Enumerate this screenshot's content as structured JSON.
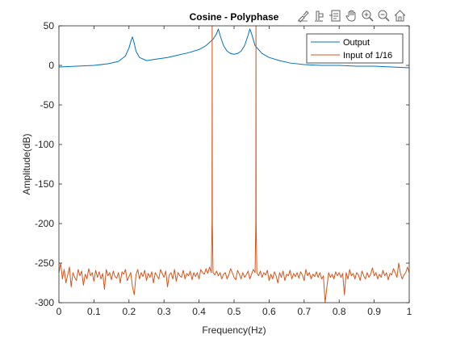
{
  "toolbar": {
    "icons": [
      "brush-icon",
      "data-cursor-icon",
      "export-icon",
      "pan-hand-icon",
      "zoom-in-icon",
      "zoom-out-icon",
      "home-icon"
    ]
  },
  "colors": {
    "output": "#0072BD",
    "input": "#D95319",
    "axis": "#262626",
    "background": "#ffffff"
  },
  "chart_data": {
    "type": "line",
    "title": "Cosine - Polyphase",
    "xlabel": "Frequency(Hz)",
    "ylabel": "Amplitude(dB)",
    "xlim": [
      0,
      1
    ],
    "ylim": [
      -300,
      50
    ],
    "xticks": [
      0,
      0.1,
      0.2,
      0.3,
      0.4,
      0.5,
      0.6,
      0.7,
      0.8,
      0.9,
      1
    ],
    "xtick_labels": [
      "0",
      "0.1",
      "0.2",
      "0.3",
      "0.4",
      "0.5",
      "0.6",
      "0.7",
      "0.8",
      "0.9",
      "1"
    ],
    "yticks": [
      50,
      0,
      -50,
      -100,
      -150,
      -200,
      -250,
      -300
    ],
    "ytick_labels": [
      "50",
      "0",
      "-50",
      "-100",
      "-150",
      "-200",
      "-250",
      "-300"
    ],
    "grid": false,
    "legend": "top-right",
    "series": [
      {
        "name": "Output",
        "color": "#0072BD",
        "x": [
          0,
          0.05,
          0.1,
          0.14,
          0.17,
          0.19,
          0.2,
          0.205,
          0.21,
          0.215,
          0.22,
          0.23,
          0.25,
          0.28,
          0.31,
          0.34,
          0.37,
          0.4,
          0.42,
          0.44,
          0.45,
          0.455,
          0.46,
          0.47,
          0.48,
          0.49,
          0.5,
          0.51,
          0.52,
          0.53,
          0.54,
          0.545,
          0.55,
          0.56,
          0.58,
          0.6,
          0.63,
          0.66,
          0.7,
          0.75,
          0.8,
          0.85,
          0.9,
          0.95,
          1
        ],
        "y": [
          -2,
          -1,
          0,
          2,
          5,
          12,
          22,
          30,
          36,
          28,
          18,
          10,
          6,
          8,
          10,
          13,
          16,
          20,
          25,
          33,
          40,
          46,
          38,
          25,
          18,
          15,
          14,
          15,
          18,
          25,
          38,
          46,
          40,
          25,
          15,
          10,
          6,
          3,
          1,
          0,
          0,
          -1,
          -1,
          -2,
          -3
        ]
      },
      {
        "name": "Input of 1/16",
        "color": "#D95319",
        "x": [
          0,
          0.005,
          0.01,
          0.015,
          0.02,
          0.025,
          0.03,
          0.035,
          0.04,
          0.045,
          0.05,
          0.055,
          0.06,
          0.065,
          0.07,
          0.075,
          0.08,
          0.085,
          0.09,
          0.095,
          0.1,
          0.105,
          0.11,
          0.115,
          0.12,
          0.125,
          0.13,
          0.135,
          0.14,
          0.145,
          0.15,
          0.155,
          0.16,
          0.165,
          0.17,
          0.175,
          0.18,
          0.185,
          0.19,
          0.195,
          0.2,
          0.205,
          0.21,
          0.215,
          0.22,
          0.225,
          0.23,
          0.235,
          0.24,
          0.245,
          0.25,
          0.255,
          0.26,
          0.265,
          0.27,
          0.275,
          0.28,
          0.285,
          0.29,
          0.295,
          0.3,
          0.305,
          0.31,
          0.315,
          0.32,
          0.325,
          0.33,
          0.335,
          0.34,
          0.345,
          0.35,
          0.355,
          0.36,
          0.365,
          0.37,
          0.375,
          0.38,
          0.385,
          0.39,
          0.395,
          0.4,
          0.405,
          0.41,
          0.415,
          0.42,
          0.425,
          0.43,
          0.435,
          0.437,
          0.4375,
          0.438,
          0.44,
          0.445,
          0.45,
          0.455,
          0.46,
          0.465,
          0.47,
          0.475,
          0.48,
          0.485,
          0.49,
          0.495,
          0.5,
          0.505,
          0.51,
          0.515,
          0.52,
          0.525,
          0.53,
          0.535,
          0.54,
          0.545,
          0.55,
          0.555,
          0.56,
          0.562,
          0.5625,
          0.563,
          0.565,
          0.57,
          0.575,
          0.58,
          0.585,
          0.59,
          0.595,
          0.6,
          0.605,
          0.61,
          0.615,
          0.62,
          0.625,
          0.63,
          0.635,
          0.64,
          0.645,
          0.65,
          0.655,
          0.66,
          0.665,
          0.67,
          0.675,
          0.68,
          0.685,
          0.69,
          0.695,
          0.7,
          0.705,
          0.71,
          0.715,
          0.72,
          0.725,
          0.73,
          0.735,
          0.74,
          0.745,
          0.75,
          0.755,
          0.76,
          0.765,
          0.77,
          0.775,
          0.78,
          0.785,
          0.79,
          0.795,
          0.8,
          0.805,
          0.81,
          0.815,
          0.82,
          0.825,
          0.83,
          0.835,
          0.84,
          0.845,
          0.85,
          0.855,
          0.86,
          0.865,
          0.87,
          0.875,
          0.88,
          0.885,
          0.89,
          0.895,
          0.9,
          0.905,
          0.91,
          0.915,
          0.92,
          0.925,
          0.93,
          0.935,
          0.94,
          0.945,
          0.95,
          0.955,
          0.96,
          0.965,
          0.97,
          0.975,
          0.98,
          0.985,
          0.99,
          0.995,
          1
        ],
        "y": [
          -262,
          -250,
          -270,
          -258,
          -275,
          -265,
          -255,
          -280,
          -262,
          -268,
          -272,
          -258,
          -266,
          -260,
          -278,
          -264,
          -270,
          -257,
          -266,
          -262,
          -273,
          -259,
          -268,
          -261,
          -270,
          -263,
          -283,
          -258,
          -266,
          -262,
          -271,
          -260,
          -267,
          -269,
          -262,
          -275,
          -261,
          -264,
          -258,
          -272,
          -267,
          -262,
          -280,
          -290,
          -265,
          -258,
          -270,
          -262,
          -267,
          -259,
          -272,
          -263,
          -268,
          -261,
          -275,
          -262,
          -266,
          -270,
          -258,
          -263,
          -268,
          -260,
          -280,
          -265,
          -262,
          -270,
          -258,
          -273,
          -262,
          -266,
          -268,
          -259,
          -270,
          -263,
          -266,
          -260,
          -271,
          -262,
          -267,
          -262,
          -270,
          -258,
          -262,
          -264,
          -257,
          -263,
          -255,
          -262,
          -200,
          50,
          -200,
          -262,
          -265,
          -260,
          -266,
          -262,
          -270,
          -264,
          -262,
          -270,
          -265,
          -257,
          -262,
          -268,
          -271,
          -259,
          -264,
          -270,
          -262,
          -268,
          -265,
          -260,
          -270,
          -264,
          -258,
          -262,
          -200,
          50,
          -200,
          -262,
          -266,
          -260,
          -268,
          -262,
          -265,
          -259,
          -272,
          -264,
          -270,
          -261,
          -266,
          -275,
          -262,
          -268,
          -260,
          -272,
          -264,
          -266,
          -259,
          -270,
          -263,
          -267,
          -262,
          -269,
          -261,
          -265,
          -272,
          -258,
          -266,
          -262,
          -270,
          -264,
          -267,
          -261,
          -268,
          -262,
          -270,
          -266,
          -300,
          -280,
          -262,
          -268,
          -264,
          -270,
          -261,
          -266,
          -262,
          -268,
          -263,
          -290,
          -262,
          -270,
          -258,
          -266,
          -263,
          -270,
          -262,
          -265,
          -272,
          -260,
          -266,
          -270,
          -262,
          -268,
          -264,
          -256,
          -266,
          -262,
          -270,
          -264,
          -268,
          -259,
          -266,
          -262,
          -271,
          -263,
          -265,
          -257,
          -262,
          -268,
          -250,
          -263,
          -270,
          -265,
          -262,
          -255,
          -262
        ]
      }
    ]
  }
}
